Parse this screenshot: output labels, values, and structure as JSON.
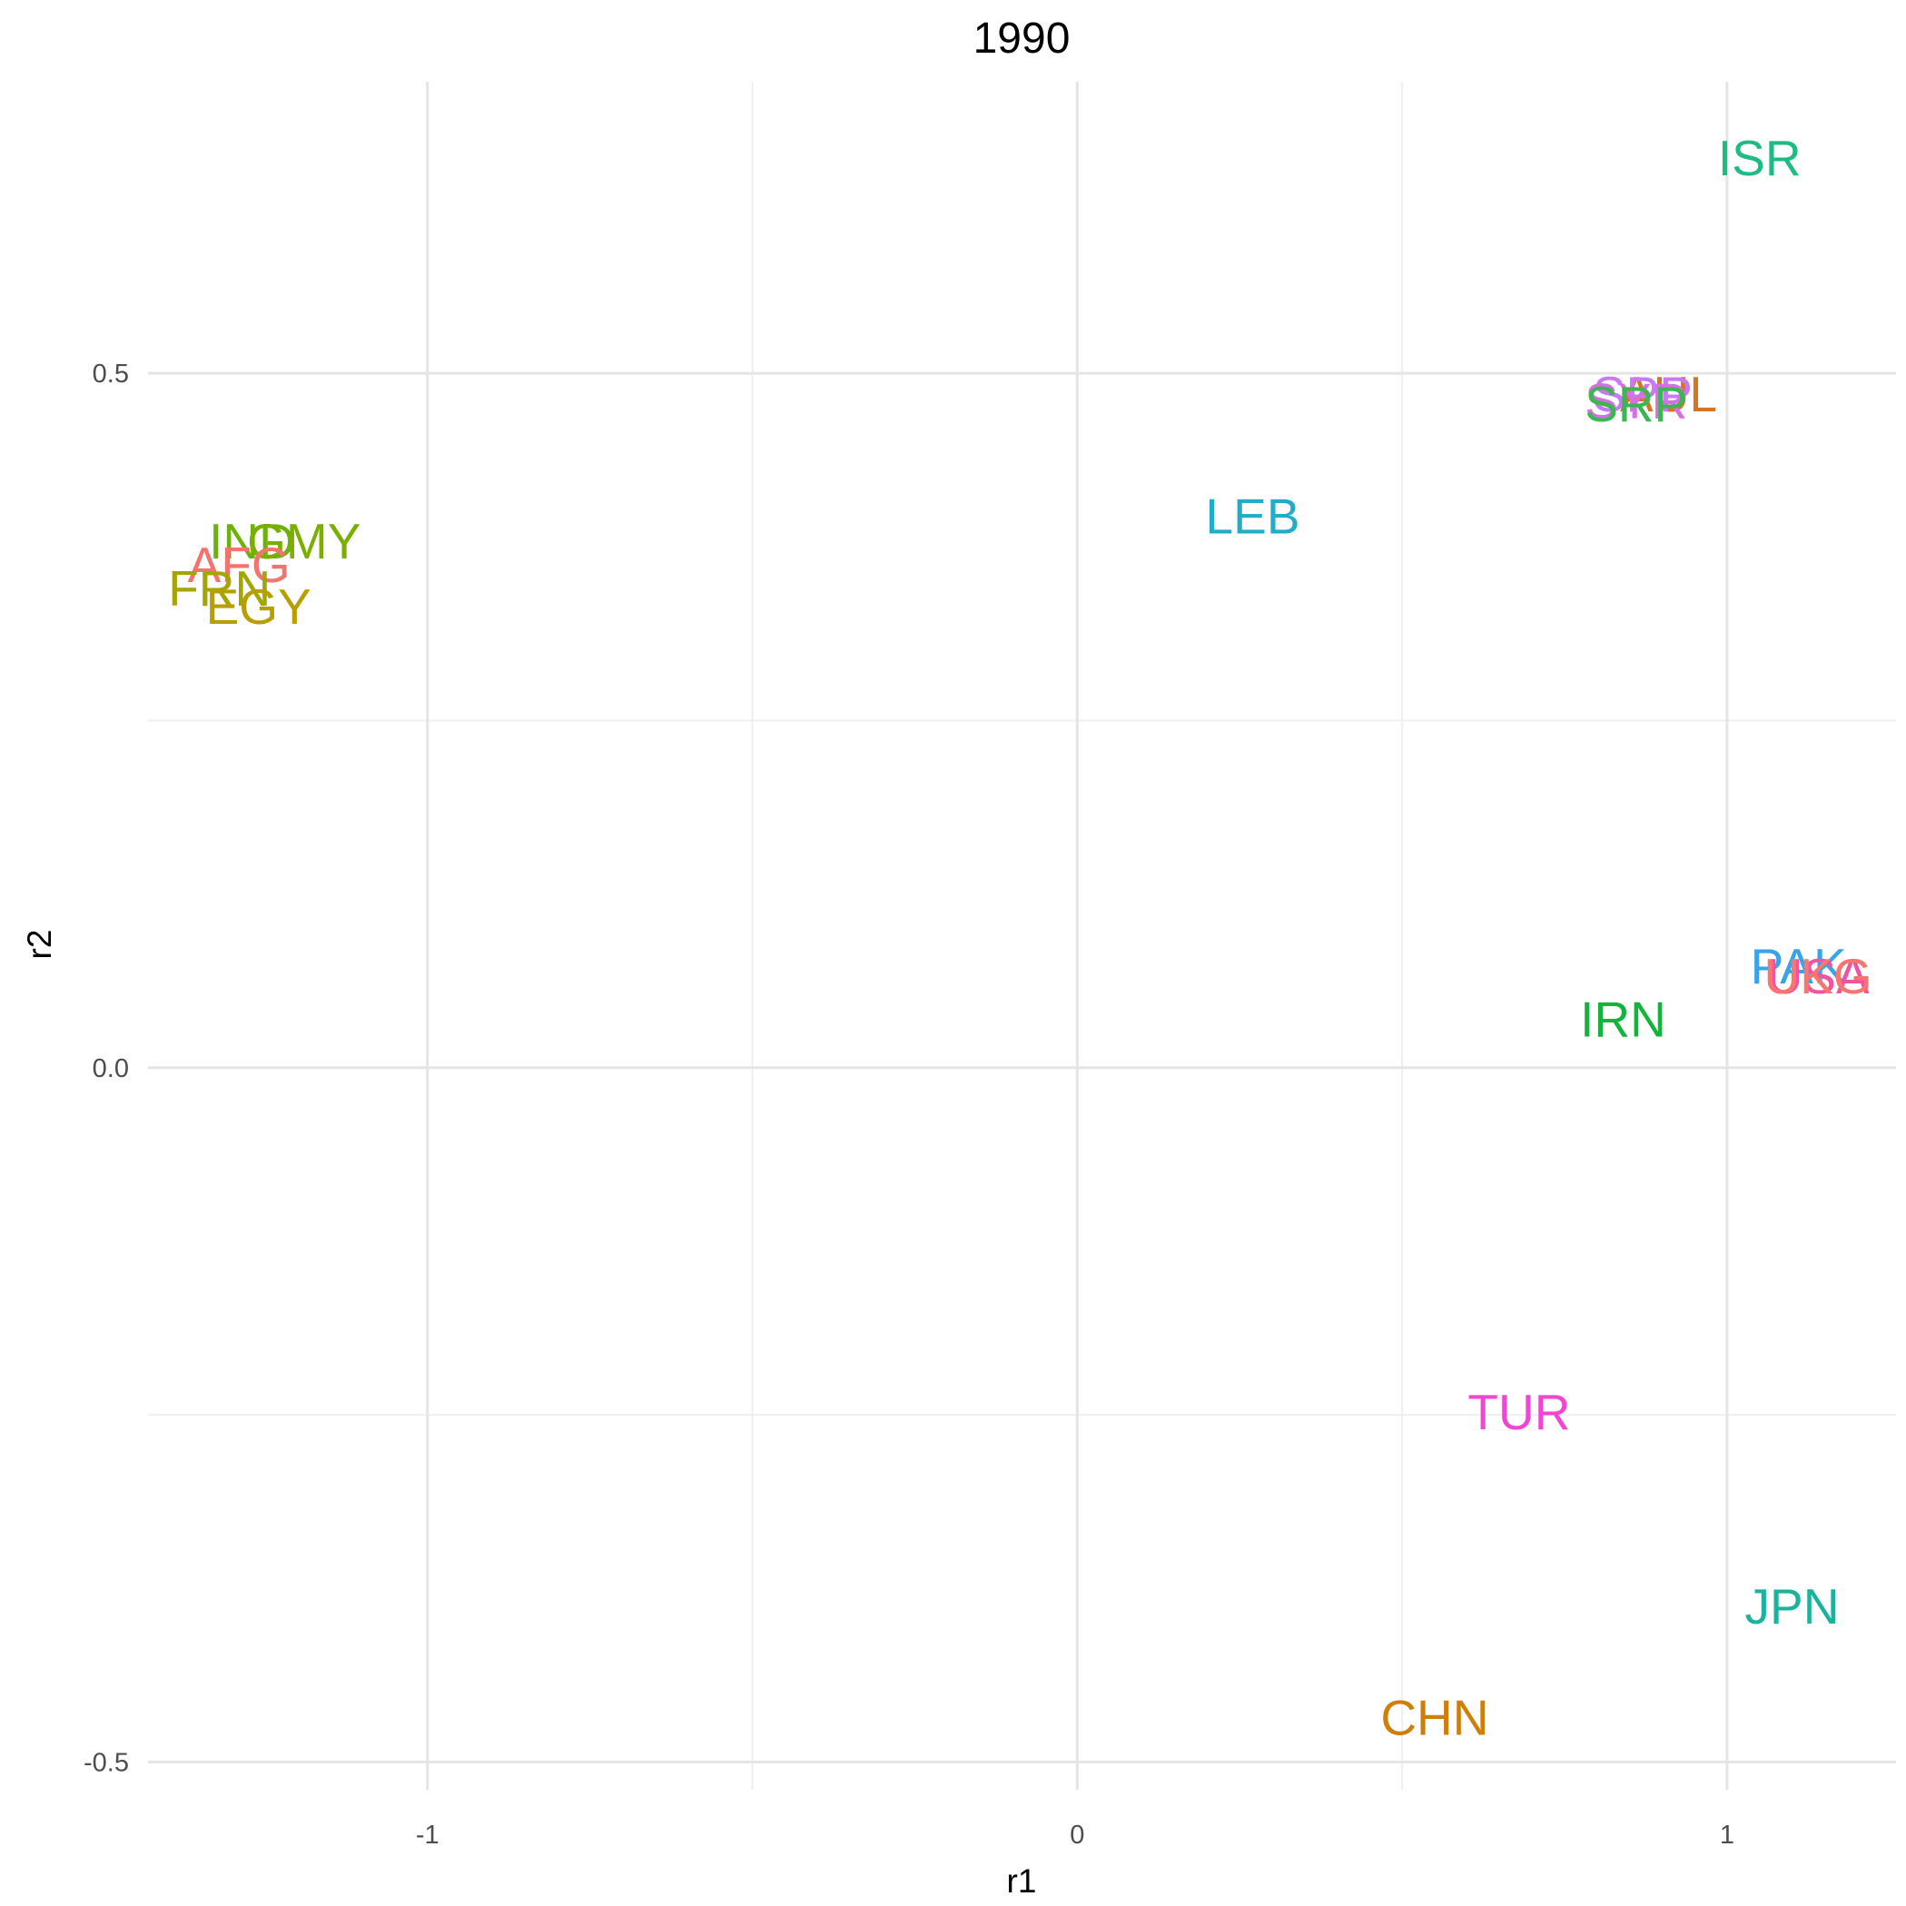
{
  "chart_data": {
    "type": "scatter",
    "title": "1990",
    "xlabel": "r1",
    "ylabel": "r2",
    "xlim": [
      -1.43,
      1.26
    ],
    "ylim": [
      -0.52,
      0.71
    ],
    "x_ticks": [
      {
        "value": -1,
        "label": "-1"
      },
      {
        "value": 0,
        "label": "0"
      },
      {
        "value": 1,
        "label": "1"
      }
    ],
    "y_ticks": [
      {
        "value": -0.5,
        "label": "-0.5"
      },
      {
        "value": 0,
        "label": "0.0"
      },
      {
        "value": 0.5,
        "label": "0.5"
      }
    ],
    "x_minor": [
      -0.5,
      0.5
    ],
    "y_minor": [
      -0.25,
      0.25
    ],
    "grid": true,
    "legend": "none",
    "points": [
      {
        "label": "ISR",
        "x": 1.05,
        "y": 0.655,
        "color": "#1EBB83"
      },
      {
        "label": "AUL",
        "x": 0.91,
        "y": 0.485,
        "color": "#D7741F"
      },
      {
        "label": "SPP",
        "x": 0.87,
        "y": 0.485,
        "color": "#C979F5"
      },
      {
        "label": "SYR",
        "x": 0.86,
        "y": 0.48,
        "color": "#D76FE3"
      },
      {
        "label": "SRP",
        "x": 0.86,
        "y": 0.478,
        "color": "#3CB553"
      },
      {
        "label": "LEB",
        "x": 0.27,
        "y": 0.397,
        "color": "#1FADC9"
      },
      {
        "label": "IND",
        "x": -1.27,
        "y": 0.379,
        "color": "#6DB10A"
      },
      {
        "label": "GMY",
        "x": -1.19,
        "y": 0.379,
        "color": "#7CAE00"
      },
      {
        "label": "AFG",
        "x": -1.29,
        "y": 0.362,
        "color": "#F1746E"
      },
      {
        "label": "FRN",
        "x": -1.32,
        "y": 0.345,
        "color": "#A3A500"
      },
      {
        "label": "EGY",
        "x": -1.26,
        "y": 0.332,
        "color": "#B79F00"
      },
      {
        "label": "PAK",
        "x": 1.11,
        "y": 0.073,
        "color": "#39A3E8"
      },
      {
        "label": "USA",
        "x": 1.14,
        "y": 0.066,
        "color": "#F0539F"
      },
      {
        "label": "UKG",
        "x": 1.14,
        "y": 0.066,
        "color": "#F8766D"
      },
      {
        "label": "IRN",
        "x": 0.84,
        "y": 0.035,
        "color": "#13B33C"
      },
      {
        "label": "TUR",
        "x": 0.68,
        "y": -0.248,
        "color": "#F046D3"
      },
      {
        "label": "JPN",
        "x": 1.1,
        "y": -0.388,
        "color": "#1BB39E"
      },
      {
        "label": "CHN",
        "x": 0.55,
        "y": -0.468,
        "color": "#CF7F08"
      }
    ]
  }
}
